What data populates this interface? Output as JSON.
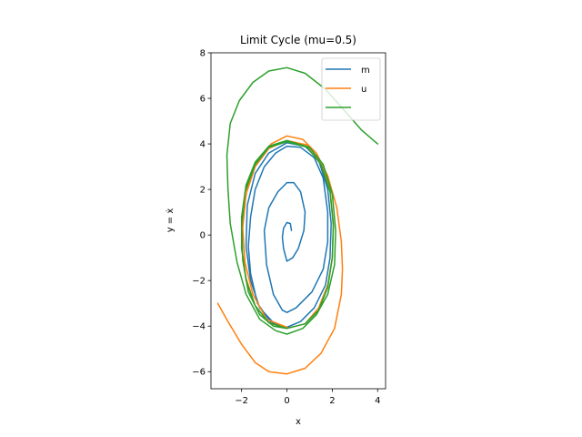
{
  "chart_data": {
    "type": "line",
    "title": "Limit Cycle (mu=0.5)",
    "xlabel": "x",
    "ylabel": "y = ẋ",
    "xlim": [
      -3.35,
      4.35
    ],
    "ylim": [
      -6.75,
      8.0
    ],
    "xticks": [
      -2,
      0,
      2,
      4
    ],
    "yticks": [
      -6,
      -4,
      -2,
      0,
      2,
      4,
      6,
      8
    ],
    "xtick_labels": [
      "−2",
      "0",
      "2",
      "4"
    ],
    "ytick_labels": [
      "−6",
      "−4",
      "−2",
      "0",
      "2",
      "4",
      "6",
      "8"
    ],
    "grid": false,
    "legend_position": "upper right",
    "series": [
      {
        "name": "m",
        "color": "#1f77b4",
        "points": [
          [
            0.2,
            0.2
          ],
          [
            0.15,
            0.5
          ],
          [
            0.0,
            0.55
          ],
          [
            -0.15,
            0.3
          ],
          [
            -0.2,
            -0.1
          ],
          [
            -0.15,
            -0.6
          ],
          [
            0.0,
            -1.15
          ],
          [
            0.25,
            -1.0
          ],
          [
            0.5,
            -0.6
          ],
          [
            0.75,
            0.2
          ],
          [
            0.8,
            1.0
          ],
          [
            0.6,
            1.9
          ],
          [
            0.3,
            2.3
          ],
          [
            0.0,
            2.3
          ],
          [
            -0.4,
            1.9
          ],
          [
            -0.8,
            1.2
          ],
          [
            -1.0,
            0.2
          ],
          [
            -0.9,
            -1.3
          ],
          [
            -0.6,
            -2.6
          ],
          [
            -0.2,
            -3.3
          ],
          [
            0.0,
            -3.4
          ],
          [
            0.4,
            -3.2
          ],
          [
            1.1,
            -2.5
          ],
          [
            1.6,
            -1.5
          ],
          [
            1.8,
            -0.3
          ],
          [
            1.8,
            1.0
          ],
          [
            1.6,
            2.5
          ],
          [
            1.2,
            3.4
          ],
          [
            0.6,
            3.85
          ],
          [
            0.0,
            3.9
          ],
          [
            -0.5,
            3.6
          ],
          [
            -1.0,
            3.0
          ],
          [
            -1.4,
            2.0
          ],
          [
            -1.6,
            0.8
          ],
          [
            -1.7,
            -0.5
          ],
          [
            -1.6,
            -1.7
          ],
          [
            -1.3,
            -3.0
          ],
          [
            -0.7,
            -3.85
          ],
          [
            0.0,
            -4.05
          ],
          [
            0.6,
            -3.8
          ],
          [
            1.2,
            -3.2
          ],
          [
            1.7,
            -2.2
          ],
          [
            1.9,
            -1.0
          ],
          [
            1.95,
            0.5
          ],
          [
            1.8,
            2.0
          ],
          [
            1.4,
            3.3
          ],
          [
            0.8,
            3.9
          ],
          [
            0.0,
            4.05
          ],
          [
            -0.8,
            3.6
          ],
          [
            -1.4,
            2.7
          ],
          [
            -1.75,
            1.3
          ],
          [
            -1.8,
            -0.5
          ],
          [
            -1.6,
            -2.0
          ],
          [
            -1.2,
            -3.2
          ],
          [
            -0.5,
            -3.95
          ],
          [
            0.0,
            -4.05
          ]
        ]
      },
      {
        "name": "u",
        "color": "#ff7f0e",
        "points": [
          [
            -3.05,
            -3.0
          ],
          [
            -2.6,
            -3.8
          ],
          [
            -2.0,
            -4.8
          ],
          [
            -1.4,
            -5.6
          ],
          [
            -0.8,
            -6.0
          ],
          [
            0.0,
            -6.1
          ],
          [
            0.8,
            -5.85
          ],
          [
            1.5,
            -5.2
          ],
          [
            2.1,
            -4.1
          ],
          [
            2.4,
            -2.6
          ],
          [
            2.45,
            -1.5
          ],
          [
            2.4,
            -0.3
          ],
          [
            2.2,
            1.2
          ],
          [
            1.8,
            2.6
          ],
          [
            1.3,
            3.6
          ],
          [
            0.7,
            4.2
          ],
          [
            0.0,
            4.35
          ],
          [
            -0.7,
            4.0
          ],
          [
            -1.3,
            3.3
          ],
          [
            -1.7,
            2.3
          ],
          [
            -1.95,
            0.9
          ],
          [
            -2.0,
            -0.5
          ],
          [
            -1.8,
            -1.9
          ],
          [
            -1.4,
            -3.1
          ],
          [
            -0.8,
            -3.85
          ],
          [
            0.0,
            -4.1
          ],
          [
            0.8,
            -3.9
          ],
          [
            1.4,
            -3.2
          ],
          [
            1.8,
            -2.2
          ],
          [
            2.0,
            -1.0
          ],
          [
            2.05,
            0.5
          ],
          [
            1.9,
            2.0
          ],
          [
            1.5,
            3.2
          ],
          [
            0.9,
            3.95
          ],
          [
            0.0,
            4.15
          ],
          [
            -0.8,
            3.8
          ],
          [
            -1.4,
            3.0
          ],
          [
            -1.8,
            1.8
          ],
          [
            -1.95,
            0.3
          ],
          [
            -1.85,
            -1.2
          ],
          [
            -1.5,
            -2.6
          ],
          [
            -0.9,
            -3.7
          ],
          [
            0.0,
            -4.05
          ]
        ]
      },
      {
        "name": "",
        "color": "#2ca02c",
        "points": [
          [
            4.0,
            4.0
          ],
          [
            3.3,
            4.6
          ],
          [
            2.5,
            5.5
          ],
          [
            1.7,
            6.4
          ],
          [
            0.8,
            7.1
          ],
          [
            0.0,
            7.35
          ],
          [
            -0.8,
            7.2
          ],
          [
            -1.5,
            6.7
          ],
          [
            -2.1,
            5.9
          ],
          [
            -2.5,
            4.9
          ],
          [
            -2.65,
            3.5
          ],
          [
            -2.6,
            2.0
          ],
          [
            -2.5,
            0.5
          ],
          [
            -2.2,
            -1.2
          ],
          [
            -1.8,
            -2.6
          ],
          [
            -1.2,
            -3.7
          ],
          [
            -0.5,
            -4.2
          ],
          [
            0.0,
            -4.35
          ],
          [
            0.7,
            -4.1
          ],
          [
            1.3,
            -3.5
          ],
          [
            1.8,
            -2.6
          ],
          [
            2.1,
            -1.3
          ],
          [
            2.15,
            0.2
          ],
          [
            2.0,
            1.8
          ],
          [
            1.6,
            3.1
          ],
          [
            1.0,
            3.85
          ],
          [
            0.0,
            4.15
          ],
          [
            -0.8,
            3.9
          ],
          [
            -1.4,
            3.2
          ],
          [
            -1.8,
            2.2
          ],
          [
            -2.0,
            0.8
          ],
          [
            -2.0,
            -0.6
          ],
          [
            -1.8,
            -2.0
          ],
          [
            -1.4,
            -3.1
          ],
          [
            -0.8,
            -3.85
          ],
          [
            0.0,
            -4.1
          ],
          [
            0.8,
            -3.9
          ],
          [
            1.4,
            -3.3
          ],
          [
            1.8,
            -2.3
          ],
          [
            2.0,
            -1.0
          ],
          [
            2.05,
            0.4
          ],
          [
            1.9,
            1.9
          ],
          [
            1.5,
            3.1
          ],
          [
            0.9,
            3.85
          ],
          [
            0.0,
            4.1
          ],
          [
            -0.8,
            3.85
          ],
          [
            -1.4,
            3.1
          ],
          [
            -1.85,
            1.9
          ],
          [
            -2.0,
            0.4
          ],
          [
            -1.95,
            -1.1
          ],
          [
            -1.7,
            -2.5
          ],
          [
            -1.2,
            -3.5
          ],
          [
            -0.6,
            -4.0
          ],
          [
            0.0,
            -4.1
          ]
        ]
      }
    ]
  }
}
